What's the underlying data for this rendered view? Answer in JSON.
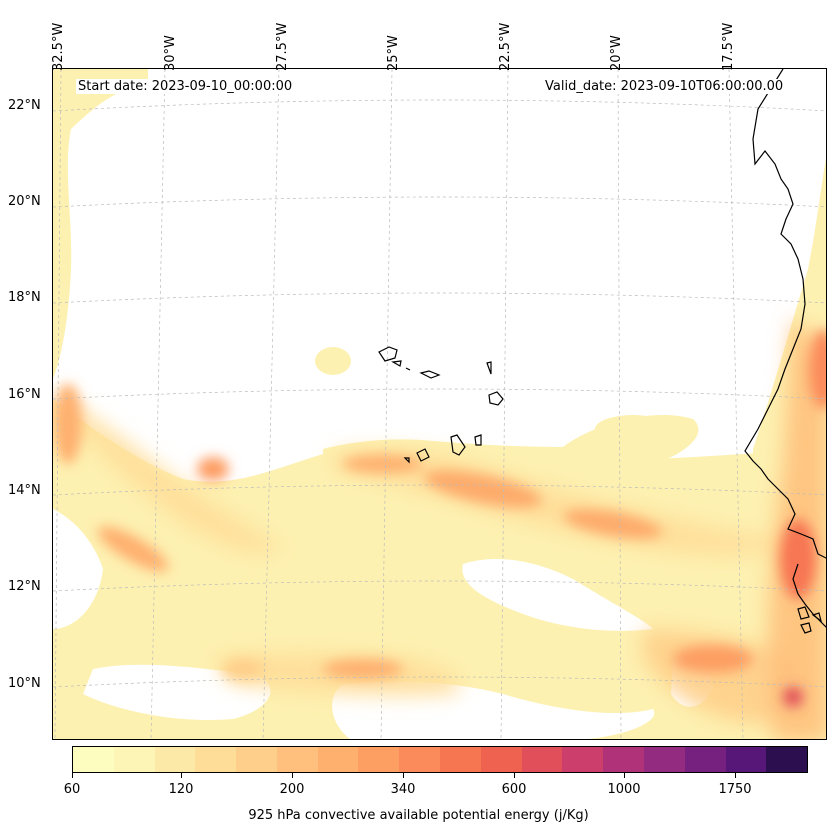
{
  "header": {
    "start_date": "Start date: 2023-09-10_00:00:00",
    "valid_date": "Valid_date: 2023-09-10T06:00:00.00"
  },
  "map": {
    "type": "filled-contour map",
    "coastline_color": "#000000",
    "grid": true,
    "longitude_labels": [
      "32.5°W",
      "30°W",
      "27.5°W",
      "25°W",
      "22.5°W",
      "20°W",
      "17.5°W"
    ],
    "latitude_labels": [
      "22°N",
      "20°N",
      "18°N",
      "16°N",
      "14°N",
      "12°N",
      "10°N"
    ]
  },
  "colorbar": {
    "title": "925 hPa convective available potential energy (j/Kg)",
    "tick_labels": [
      "60",
      "120",
      "200",
      "340",
      "600",
      "1000",
      "1750"
    ],
    "colors": [
      "#fcfdbf",
      "#fcf5b6",
      "#fde9a7",
      "#fedd98",
      "#fecf8a",
      "#fec07c",
      "#feb06f",
      "#fd9e63",
      "#fb8b5a",
      "#f77652",
      "#ef6250",
      "#e04f5a",
      "#cc3f6c",
      "#b0337a",
      "#932b80",
      "#76217f",
      "#561779",
      "#2c0f4f"
    ]
  },
  "chart_data": {
    "type": "heatmap",
    "title": "",
    "variable": "925 hPa convective available potential energy (j/Kg)",
    "x_range": [
      "33°W",
      "16°W"
    ],
    "y_range": [
      "8.8°N",
      "22.8°N"
    ],
    "colorbar_ticks": [
      60,
      120,
      200,
      340,
      600,
      1000,
      1750
    ],
    "levels": [
      60,
      80,
      100,
      120,
      150,
      180,
      200,
      250,
      300,
      340,
      400,
      500,
      600,
      800,
      1000,
      1250,
      1500,
      1750,
      2000
    ]
  }
}
